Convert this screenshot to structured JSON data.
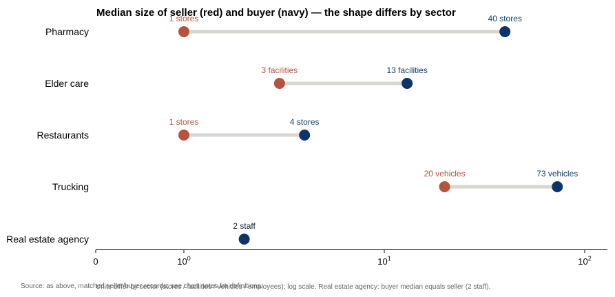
{
  "chart_data": {
    "type": "dumbbell",
    "title": "Median size of seller (red) and buyer (navy) — the shape differs by sector",
    "xscale": "log",
    "xlim": [
      0.5,
      250
    ],
    "xticks": [
      {
        "value": 0.5,
        "label": "0"
      },
      {
        "value": 1,
        "base": "10",
        "exp": "0"
      },
      {
        "value": 10,
        "base": "10",
        "exp": "1"
      },
      {
        "value": 100,
        "base": "10",
        "exp": "2"
      }
    ],
    "grid": false,
    "categories": [
      "Pharmacy",
      "Elder care",
      "Restaurants",
      "Trucking",
      "Real estate agency"
    ],
    "rows": [
      {
        "category": "Pharmacy",
        "seller": 1,
        "seller_label": "1 stores",
        "buyer": 40,
        "buyer_label": "40 stores"
      },
      {
        "category": "Elder care",
        "seller": 3,
        "seller_label": "3 facilities",
        "buyer": 13,
        "buyer_label": "13 facilities"
      },
      {
        "category": "Restaurants",
        "seller": 1,
        "seller_label": "1 stores",
        "buyer": 4,
        "buyer_label": "4 stores"
      },
      {
        "category": "Trucking",
        "seller": 20,
        "seller_label": "20 vehicles",
        "buyer": 73,
        "buyer_label": "73 vehicles"
      },
      {
        "category": "Real estate agency",
        "seller": 2,
        "seller_label": "2 staff",
        "buyer": 2,
        "buyer_label": ""
      }
    ],
    "colors": {
      "seller": "#b5533c",
      "buyer": "#0c3468",
      "buyer_label": "#143e6e",
      "single_label": "#0f2440",
      "connector": "#d8d6d0",
      "axis": "#000000"
    },
    "footnote_units": "Units differ by sector (stores / facilities / vehicles / employees); log scale. Real estate agency: buyer median equals seller (2 staff).",
    "footnote_source": "Source: as above, matched seller/buyer records; see chart notes for definitions."
  }
}
